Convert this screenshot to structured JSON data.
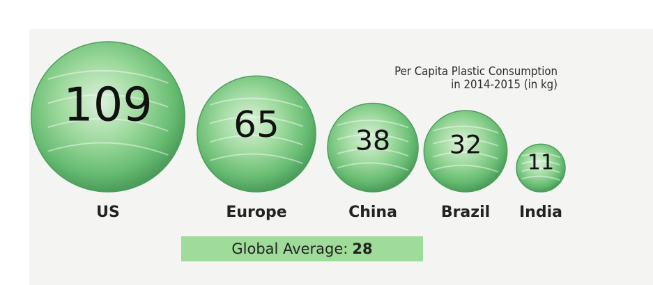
{
  "chart_data": {
    "type": "bubble",
    "title": "Per Capita Plastic Consumption",
    "subtitle": "in 2014-2015 (in kg)",
    "categories": [
      "US",
      "Europe",
      "China",
      "Brazil",
      "India"
    ],
    "values": [
      109,
      65,
      38,
      32,
      11
    ],
    "reference": {
      "label": "Global Average:",
      "value": "28"
    }
  },
  "colors": {
    "bubble_fill": "#5cc26a",
    "bubble_stroke": "#2f8f43",
    "number": "#111111",
    "label": "#222222",
    "average_bar": "#9fdb99",
    "panel": "#f4f4f2"
  }
}
